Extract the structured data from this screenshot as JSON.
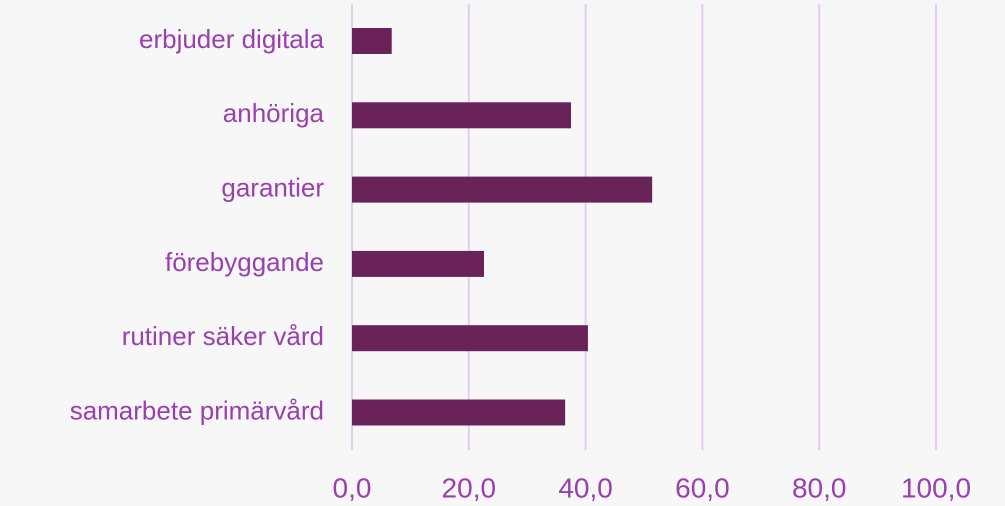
{
  "chart_data": {
    "type": "barh",
    "categories": [
      "erbjuder digitala",
      "anhöriga",
      "garantier",
      "förebyggande",
      "rutiner säker vård",
      "samarbete primärvård"
    ],
    "values": [
      6.8,
      37.5,
      51.4,
      22.6,
      40.4,
      36.5
    ],
    "color": "#6a2358",
    "xlim": [
      0,
      100
    ],
    "xticks": [
      {
        "value": 0,
        "label": "0,0"
      },
      {
        "value": 20,
        "label": "20,0"
      },
      {
        "value": 40,
        "label": "40,0"
      },
      {
        "value": 60,
        "label": "60,0"
      },
      {
        "value": 80,
        "label": "80,0"
      },
      {
        "value": 100,
        "label": "100,0"
      }
    ],
    "grid": true
  }
}
